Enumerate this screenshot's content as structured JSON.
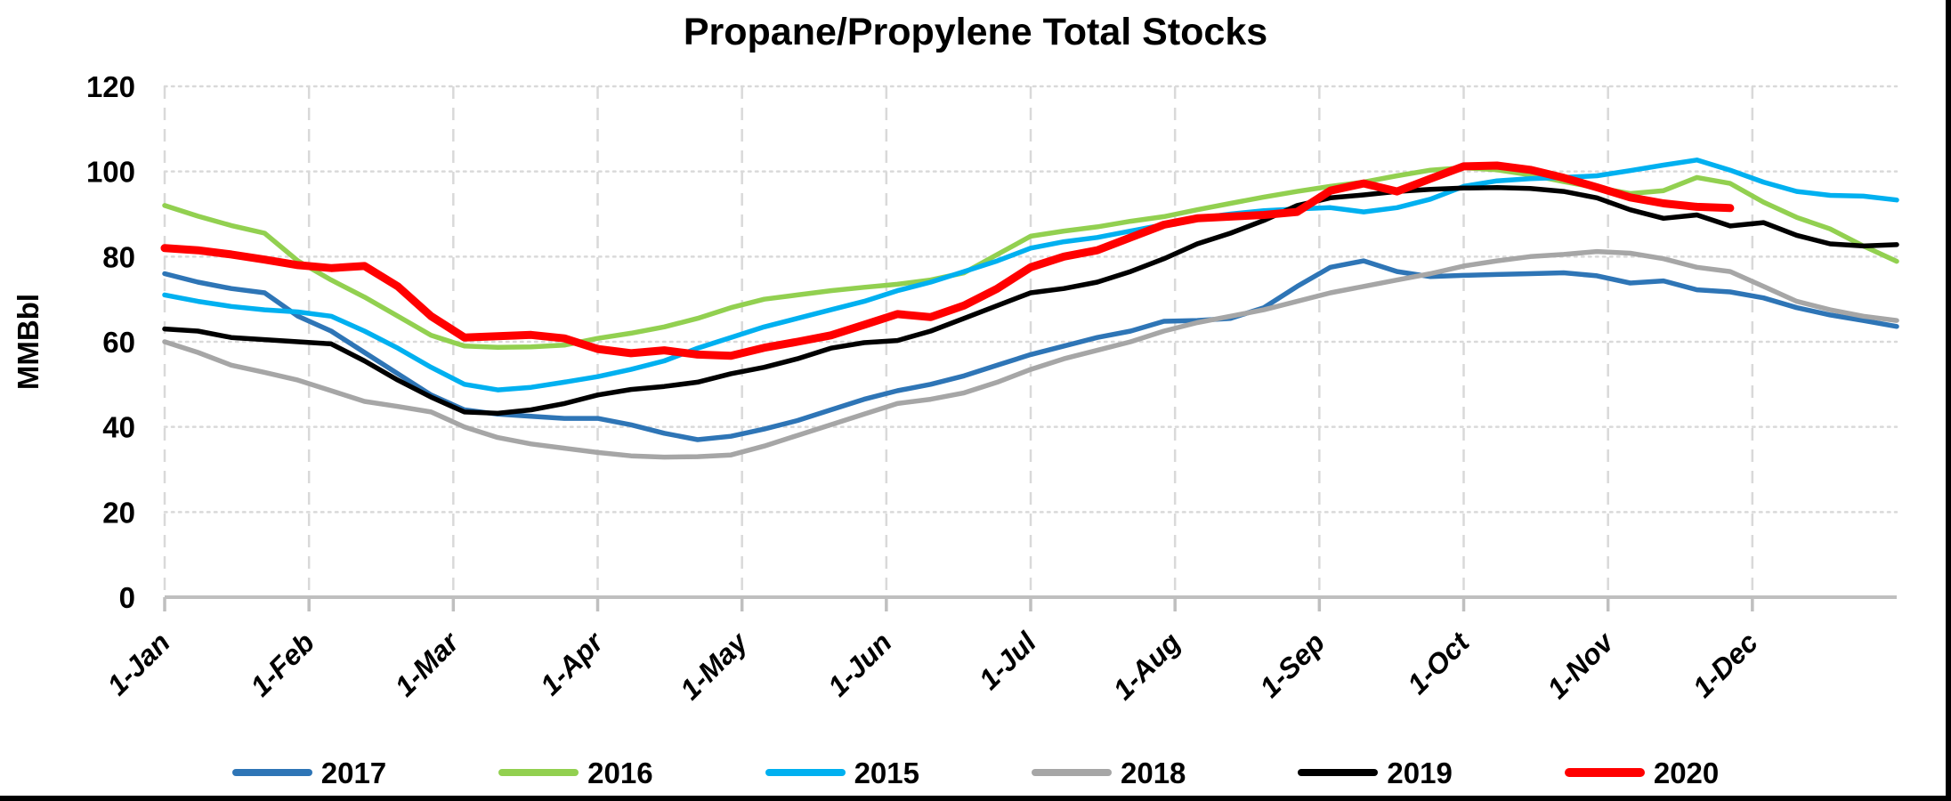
{
  "chart_data": {
    "type": "line",
    "title": "Propane/Propylene Total Stocks",
    "ylabel": "MMBbl",
    "ylim": [
      0,
      120
    ],
    "y_ticks": [
      0,
      20,
      40,
      60,
      80,
      100,
      120
    ],
    "x_tick_labels": [
      "1-Jan",
      "1-Feb",
      "1-Mar",
      "1-Apr",
      "1-May",
      "1-Jun",
      "1-Jul",
      "1-Aug",
      "1-Sep",
      "1-Oct",
      "1-Nov",
      "1-Dec"
    ],
    "x_frequency": "weekly",
    "grid_on": true,
    "h_grid_style": "dotted",
    "v_grid_style": "dashed",
    "grid_color": "#D9D9D9",
    "axis_color": "#BFBFBF",
    "text_color": "#000000",
    "background_color": "#FFFFFF",
    "legend_position": "bottom",
    "series": [
      {
        "name": "2017",
        "color": "#2E75B6",
        "line_width": 5.5,
        "values": [
          76,
          74,
          72.5,
          71.5,
          66,
          62.5,
          57.5,
          52.5,
          47.5,
          44,
          43,
          42.5,
          42,
          42,
          40.5,
          38.5,
          37,
          37.8,
          39.5,
          41.5,
          44,
          46.5,
          48.5,
          50,
          52,
          54.5,
          57,
          59,
          61,
          62.5,
          64.8,
          65,
          65.5,
          68,
          73,
          77.5,
          79,
          76.5,
          75.3,
          75.6,
          75.8,
          76,
          76.2,
          75.5,
          73.8,
          74.3,
          72.2,
          71.7,
          70.3,
          68,
          66.3,
          65,
          63.6
        ]
      },
      {
        "name": "2016",
        "color": "#92D050",
        "line_width": 5.5,
        "values": [
          92,
          89.5,
          87.3,
          85.5,
          79,
          74.5,
          70.5,
          66,
          61.5,
          59,
          58.7,
          58.8,
          59.2,
          60.8,
          62,
          63.5,
          65.5,
          68,
          70,
          71,
          72,
          72.8,
          73.5,
          74.5,
          76.2,
          80.5,
          84.8,
          86,
          87,
          88.3,
          89.4,
          91,
          92.5,
          94,
          95.3,
          96.5,
          97.5,
          99,
          100.3,
          100.9,
          100.4,
          99.2,
          97.6,
          96.2,
          94.8,
          95.5,
          98.6,
          97.2,
          92.8,
          89.2,
          86.5,
          82.5,
          78.9
        ]
      },
      {
        "name": "2015",
        "color": "#00B0F0",
        "line_width": 5.5,
        "values": [
          71,
          69.5,
          68.3,
          67.5,
          67,
          66,
          62.5,
          58.5,
          54,
          50,
          48.7,
          49.3,
          50.5,
          51.8,
          53.5,
          55.5,
          58.5,
          61,
          63.5,
          65.5,
          67.5,
          69.5,
          72,
          74,
          76.5,
          79,
          82,
          83.5,
          84.5,
          86,
          87.5,
          89,
          90,
          90.8,
          91.2,
          91.5,
          90.5,
          91.5,
          93.5,
          96.5,
          97.8,
          98.3,
          98.6,
          99,
          100.2,
          101.5,
          102.7,
          100.3,
          97.5,
          95.3,
          94.4,
          94.2,
          93.3
        ]
      },
      {
        "name": "2018",
        "color": "#A6A6A6",
        "line_width": 5.5,
        "values": [
          60,
          57.5,
          54.5,
          52.8,
          51,
          48.5,
          46,
          44.8,
          43.5,
          40,
          37.5,
          36,
          35,
          34,
          33.2,
          32.9,
          33,
          33.4,
          35.5,
          38,
          40.5,
          43,
          45.5,
          46.5,
          48,
          50.5,
          53.5,
          56,
          58,
          60,
          62.5,
          64.5,
          66,
          67.5,
          69.5,
          71.5,
          73,
          74.5,
          76,
          77.8,
          79,
          80,
          80.5,
          81.2,
          80.8,
          79.5,
          77.5,
          76.5,
          73,
          69.5,
          67.5,
          66,
          65
        ]
      },
      {
        "name": "2019",
        "color": "#000000",
        "line_width": 5.5,
        "values": [
          63,
          62.5,
          61,
          60.5,
          60,
          59.5,
          55.5,
          51,
          47,
          43.5,
          43.2,
          44,
          45.5,
          47.5,
          48.8,
          49.5,
          50.5,
          52.5,
          54,
          56,
          58.5,
          59.8,
          60.3,
          62.5,
          65.5,
          68.5,
          71.5,
          72.5,
          74,
          76.5,
          79.5,
          83,
          85.5,
          88.5,
          92,
          93.8,
          94.5,
          95.3,
          95.8,
          96.1,
          96.2,
          96,
          95.3,
          93.8,
          91,
          89,
          89.8,
          87.2,
          88,
          85,
          83,
          82.5,
          82.8
        ]
      },
      {
        "name": "2020",
        "color": "#FF0000",
        "line_width": 9,
        "values": [
          82,
          81.5,
          80.5,
          79.3,
          78,
          77.3,
          77.8,
          73,
          66,
          61,
          61.3,
          61.6,
          60.8,
          58.3,
          57.3,
          58,
          57,
          56.7,
          58.6,
          60,
          61.5,
          64,
          66.5,
          65.8,
          68.5,
          72.5,
          77.5,
          80,
          81.5,
          84.5,
          87.5,
          89,
          89.4,
          89.8,
          90.5,
          95.5,
          97.2,
          95.3,
          98.3,
          101.2,
          101.4,
          100.4,
          98.5,
          96.3,
          93.9,
          92.5,
          91.7,
          91.4
        ]
      }
    ]
  }
}
